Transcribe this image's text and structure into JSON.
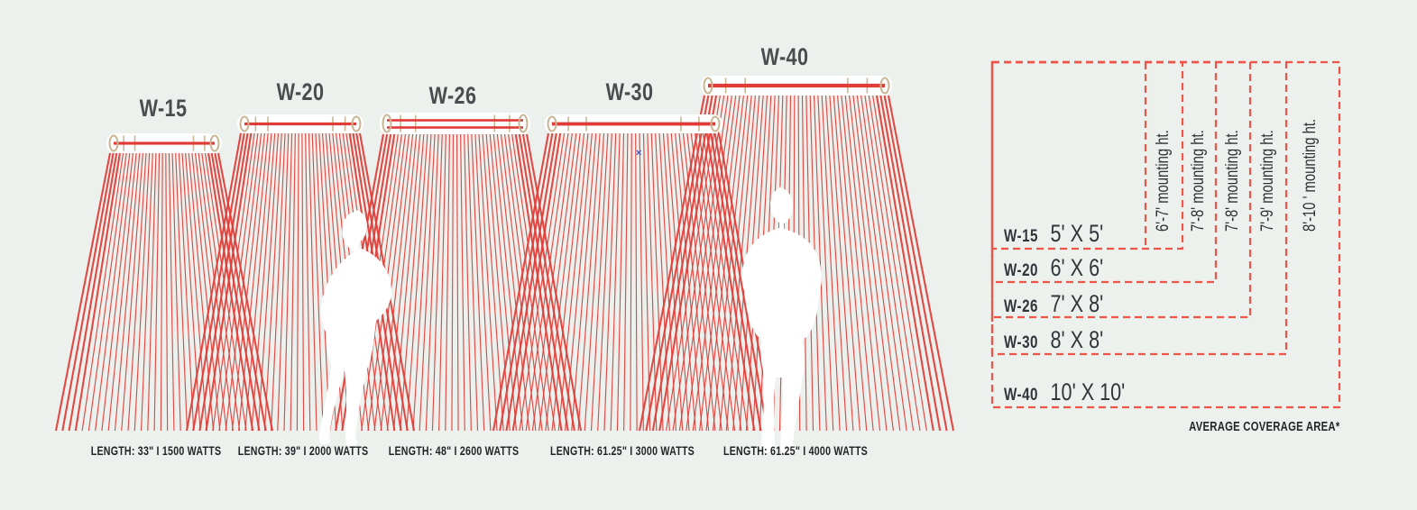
{
  "colors": {
    "background": "#edf1ee",
    "ray_red": "#e13b36",
    "dash_red": "#ef5449",
    "tan": "#c8b694",
    "title_gray": "#494d4f",
    "text_dark": "#232528",
    "marker_blue": "#3c50c8"
  },
  "heaters": [
    {
      "model": "W-15",
      "caption": "LENGTH: 33\" I 1500 WATTS"
    },
    {
      "model": "W-20",
      "caption": "LENGTH: 39\" I 2000 WATTS"
    },
    {
      "model": "W-26",
      "caption": "LENGTH: 48\" I 2600 WATTS"
    },
    {
      "model": "W-30",
      "caption": "LENGTH: 61.25\" I 3000 WATTS"
    },
    {
      "model": "W-40",
      "caption": "LENGTH: 61.25\" I 4000 WATTS"
    }
  ],
  "legend": {
    "rows": [
      {
        "model": "W-15",
        "coverage": "5' X 5'",
        "mounting_height": "6'-7' mounting ht."
      },
      {
        "model": "W-20",
        "coverage": "6' X 6'",
        "mounting_height": "7'-8' mounting ht."
      },
      {
        "model": "W-26",
        "coverage": "7' X 8'",
        "mounting_height": "7'-8' mounting ht."
      },
      {
        "model": "W-30",
        "coverage": "8' X 8'",
        "mounting_height": "7'-9' mounting ht."
      },
      {
        "model": "W-40",
        "coverage": "10' X 10'",
        "mounting_height": "8'-10 ' mounting ht."
      }
    ],
    "footnote": "AVERAGE COVERAGE AREA*"
  },
  "marker": {
    "glyph": "×"
  }
}
